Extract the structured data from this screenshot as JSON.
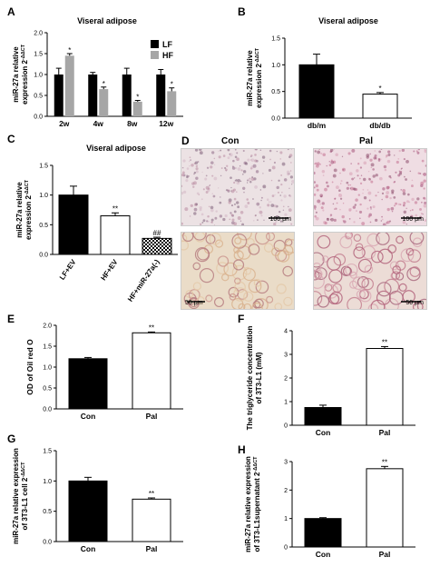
{
  "panels": {
    "A": {
      "letter": "A",
      "title": "Viseral adipose",
      "ylabel": "miR-27a relative expression 2",
      "ysup": "-ΔΔCT"
    },
    "B": {
      "letter": "B",
      "title": "Viseral adipose",
      "ylabel": "miR-27a relative expression 2",
      "ysup": "-ΔΔCT"
    },
    "C": {
      "letter": "C",
      "title": "Viseral adipose",
      "ylabel": "miR-27a relative expression 2",
      "ysup": "-ΔΔCT"
    },
    "D": {
      "letter": "D",
      "col1": "Con",
      "col2": "Pal",
      "scale_top_left": "100 μm",
      "scale_top_right": "100 μm",
      "scale_bot_left": "50 μm",
      "scale_bot_right": "50 μm"
    },
    "E": {
      "letter": "E",
      "ylabel": "OD of Oil red O"
    },
    "F": {
      "letter": "F",
      "ylabel_line1": "The triglyceride concentration",
      "ylabel_line2": "of 3T3-L1 (mM)"
    },
    "G": {
      "letter": "G",
      "ylabel_line1": "miR-27a relative expression",
      "ylabel_line2": "of 3T3-L1 cell 2",
      "ysup": "-ΔΔCT"
    },
    "H": {
      "letter": "H",
      "ylabel_line1": "miR-27a relative expression",
      "ylabel_line2": "of 3T3-L1supernatant 2",
      "ysup": "-ΔΔCT"
    }
  },
  "colors": {
    "black_bar": "#000000",
    "gray_bar": "#a6a6a6",
    "white_bar": "#ffffff"
  },
  "chart_data": [
    {
      "id": "A",
      "type": "bar",
      "title": "Viseral adipose",
      "categories": [
        "2w",
        "4w",
        "8w",
        "12w"
      ],
      "series": [
        {
          "name": "LF",
          "values": [
            1.0,
            1.0,
            1.0,
            1.0
          ],
          "errors": [
            0.15,
            0.05,
            0.15,
            0.12
          ],
          "color": "#000000"
        },
        {
          "name": "HF",
          "values": [
            1.45,
            0.65,
            0.35,
            0.6
          ],
          "errors": [
            0.05,
            0.05,
            0.03,
            0.08
          ],
          "color": "#a6a6a6"
        }
      ],
      "annotations": [
        "*",
        "*",
        "*",
        "*"
      ],
      "ylim": [
        0,
        2.0
      ],
      "yticks": [
        0.0,
        0.5,
        1.0,
        1.5,
        2.0
      ],
      "legend": "top-right"
    },
    {
      "id": "B",
      "type": "bar",
      "title": "Viseral adipose",
      "categories": [
        "db/m",
        "db/db"
      ],
      "values": [
        1.0,
        0.45
      ],
      "errors": [
        0.2,
        0.03
      ],
      "fills": [
        "#000000",
        "#ffffff"
      ],
      "annotations": [
        "",
        "*"
      ],
      "ylim": [
        0,
        1.5
      ],
      "yticks": [
        0.0,
        0.5,
        1.0,
        1.5
      ]
    },
    {
      "id": "C",
      "type": "bar",
      "title": "Viseral adipose",
      "categories": [
        "LF+EV",
        "HF+EV",
        "HF+miR-27a(-)"
      ],
      "values": [
        1.0,
        0.65,
        0.27
      ],
      "errors": [
        0.15,
        0.05,
        0.02
      ],
      "fills": [
        "#000000",
        "#ffffff",
        "checker"
      ],
      "annotations": [
        "",
        "**",
        "##"
      ],
      "ylim": [
        0,
        1.5
      ],
      "yticks": [
        0.0,
        0.5,
        1.0,
        1.5
      ]
    },
    {
      "id": "E",
      "type": "bar",
      "categories": [
        "Con",
        "Pal"
      ],
      "values": [
        1.2,
        1.82
      ],
      "errors": [
        0.03,
        0.02
      ],
      "fills": [
        "#000000",
        "#ffffff"
      ],
      "annotations": [
        "",
        "**"
      ],
      "ylim": [
        0,
        2.0
      ],
      "yticks": [
        0.0,
        0.5,
        1.0,
        1.5,
        2.0
      ]
    },
    {
      "id": "F",
      "type": "bar",
      "categories": [
        "Con",
        "Pal"
      ],
      "values": [
        0.75,
        3.25
      ],
      "errors": [
        0.1,
        0.08
      ],
      "fills": [
        "#000000",
        "#ffffff"
      ],
      "annotations": [
        "",
        "**"
      ],
      "ylim": [
        0,
        4
      ],
      "yticks": [
        0,
        1,
        2,
        3,
        4
      ]
    },
    {
      "id": "G",
      "type": "bar",
      "categories": [
        "Con",
        "Pal"
      ],
      "values": [
        1.0,
        0.7
      ],
      "errors": [
        0.06,
        0.02
      ],
      "fills": [
        "#000000",
        "#ffffff"
      ],
      "annotations": [
        "",
        "**"
      ],
      "ylim": [
        0,
        1.5
      ],
      "yticks": [
        0.0,
        0.5,
        1.0,
        1.5
      ]
    },
    {
      "id": "H",
      "type": "bar",
      "categories": [
        "Con",
        "Pal"
      ],
      "values": [
        1.0,
        2.75
      ],
      "errors": [
        0.03,
        0.08
      ],
      "fills": [
        "#000000",
        "#ffffff"
      ],
      "annotations": [
        "",
        "**"
      ],
      "ylim": [
        0,
        3
      ],
      "yticks": [
        0,
        1,
        2,
        3
      ]
    }
  ]
}
